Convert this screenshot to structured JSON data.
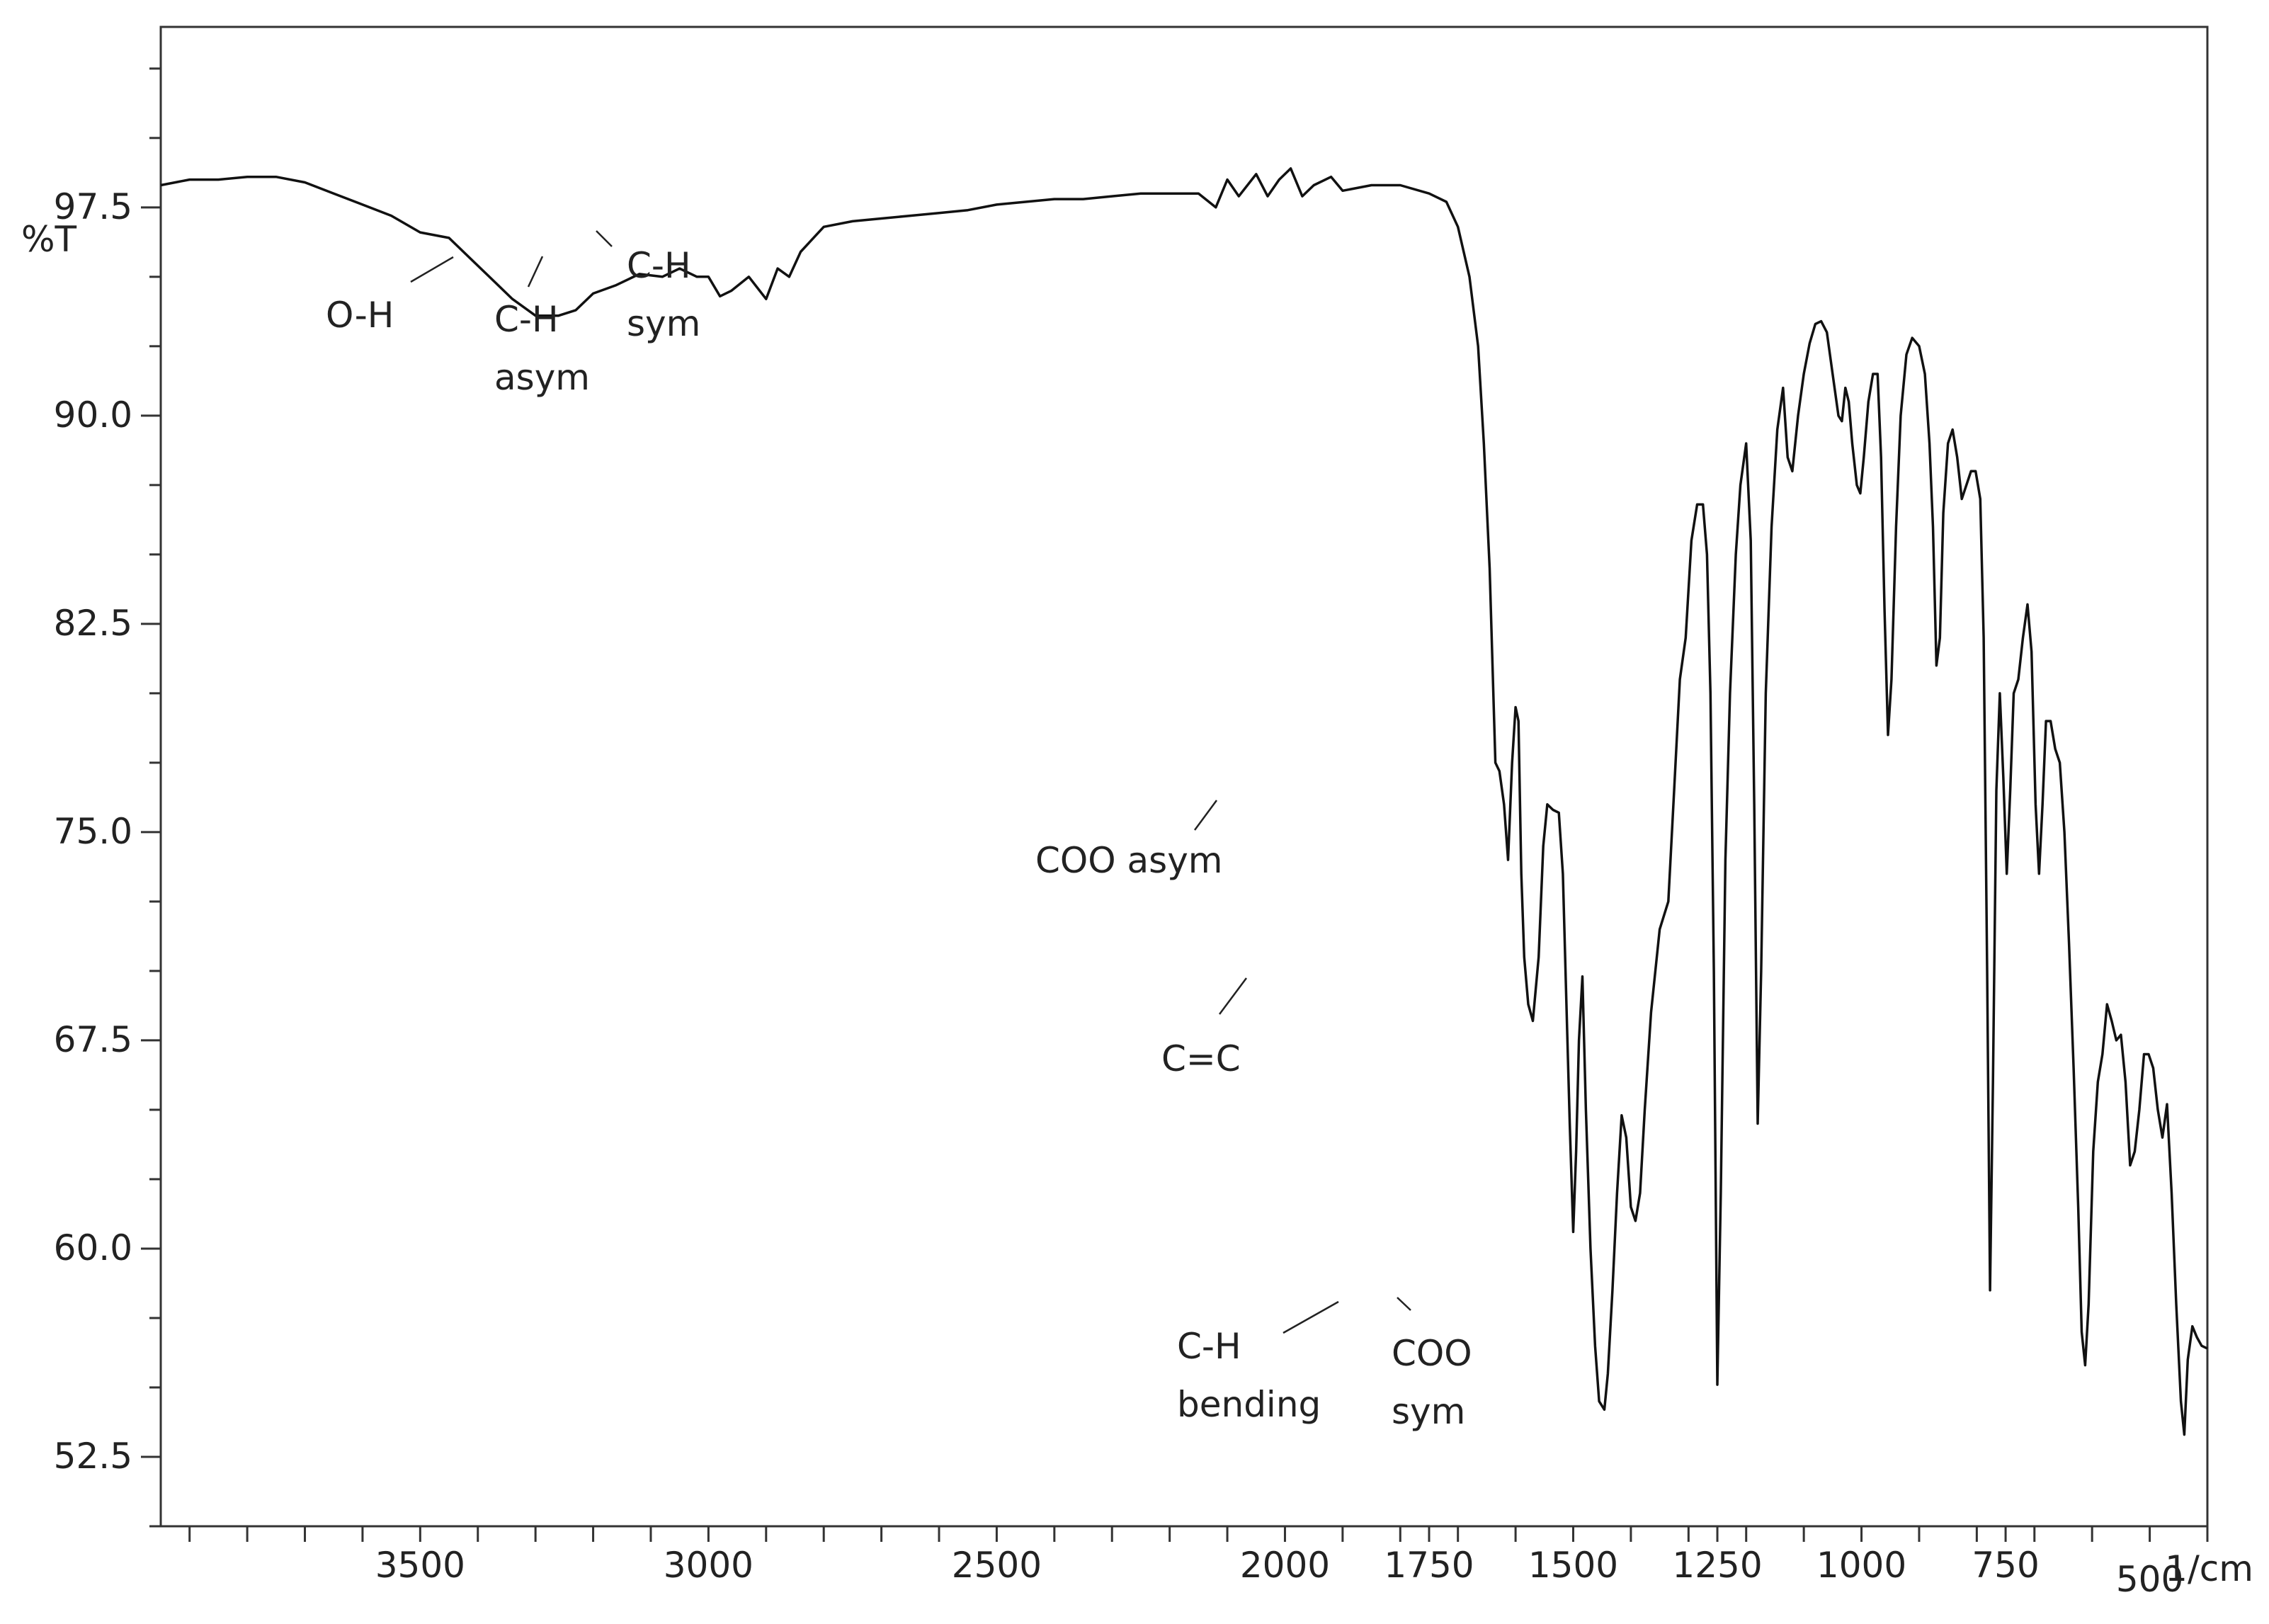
{
  "chart_data": {
    "type": "line",
    "title": "",
    "xlabel": "1/cm",
    "ylabel": "%T",
    "x_reversed": true,
    "xlim": [
      3950,
      400
    ],
    "ylim": [
      50,
      104
    ],
    "grid": false,
    "y_ticks": [
      52.5,
      60.0,
      67.5,
      75.0,
      82.5,
      90.0,
      97.5
    ],
    "y_tick_labels": [
      "52.5",
      "60.0",
      "67.5",
      "75.0",
      "82.5",
      "90.0",
      "97.5"
    ],
    "x_ticks": [
      3500,
      3000,
      2500,
      2000,
      1750,
      1500,
      1250,
      1000,
      750,
      500
    ],
    "x_tick_labels": [
      "3500",
      "3000",
      "2500",
      "2000",
      "1750",
      "1500",
      "1250",
      "1000",
      "750",
      "500"
    ],
    "series": [
      {
        "color": "#111111",
        "points": [
          [
            3950,
            98.3
          ],
          [
            3900,
            98.5
          ],
          [
            3850,
            98.5
          ],
          [
            3800,
            98.6
          ],
          [
            3750,
            98.6
          ],
          [
            3700,
            98.4
          ],
          [
            3650,
            98.0
          ],
          [
            3600,
            97.6
          ],
          [
            3550,
            97.2
          ],
          [
            3500,
            96.6
          ],
          [
            3450,
            96.4
          ],
          [
            3420,
            95.8
          ],
          [
            3380,
            95.0
          ],
          [
            3340,
            94.2
          ],
          [
            3300,
            93.6
          ],
          [
            3260,
            93.6
          ],
          [
            3230,
            93.8
          ],
          [
            3200,
            94.4
          ],
          [
            3160,
            94.7
          ],
          [
            3120,
            95.1
          ],
          [
            3080,
            95.0
          ],
          [
            3050,
            95.3
          ],
          [
            3020,
            95.0
          ],
          [
            3000,
            95.0
          ],
          [
            2980,
            94.3
          ],
          [
            2960,
            94.5
          ],
          [
            2930,
            95.0
          ],
          [
            2900,
            94.2
          ],
          [
            2880,
            95.3
          ],
          [
            2860,
            95.0
          ],
          [
            2840,
            95.9
          ],
          [
            2800,
            96.8
          ],
          [
            2750,
            97.0
          ],
          [
            2700,
            97.1
          ],
          [
            2650,
            97.2
          ],
          [
            2600,
            97.3
          ],
          [
            2550,
            97.4
          ],
          [
            2500,
            97.6
          ],
          [
            2450,
            97.7
          ],
          [
            2400,
            97.8
          ],
          [
            2350,
            97.8
          ],
          [
            2300,
            97.9
          ],
          [
            2250,
            98.0
          ],
          [
            2200,
            98.0
          ],
          [
            2150,
            98.0
          ],
          [
            2120,
            97.5
          ],
          [
            2100,
            98.5
          ],
          [
            2080,
            97.9
          ],
          [
            2050,
            98.7
          ],
          [
            2030,
            97.9
          ],
          [
            2010,
            98.5
          ],
          [
            1990,
            98.9
          ],
          [
            1970,
            97.9
          ],
          [
            1950,
            98.3
          ],
          [
            1920,
            98.6
          ],
          [
            1900,
            98.1
          ],
          [
            1850,
            98.3
          ],
          [
            1800,
            98.3
          ],
          [
            1750,
            98.0
          ],
          [
            1720,
            97.7
          ],
          [
            1700,
            96.8
          ],
          [
            1680,
            95.0
          ],
          [
            1665,
            92.5
          ],
          [
            1655,
            89.0
          ],
          [
            1645,
            84.5
          ],
          [
            1635,
            77.5
          ],
          [
            1628,
            77.2
          ],
          [
            1620,
            76.0
          ],
          [
            1613,
            74.0
          ],
          [
            1606,
            77.5
          ],
          [
            1600,
            79.5
          ],
          [
            1595,
            79.0
          ],
          [
            1590,
            73.5
          ],
          [
            1585,
            70.5
          ],
          [
            1578,
            68.8
          ],
          [
            1570,
            68.2
          ],
          [
            1560,
            70.5
          ],
          [
            1552,
            74.5
          ],
          [
            1545,
            76.0
          ],
          [
            1535,
            75.8
          ],
          [
            1525,
            75.7
          ],
          [
            1518,
            73.5
          ],
          [
            1512,
            69.0
          ],
          [
            1506,
            64.5
          ],
          [
            1500,
            60.6
          ],
          [
            1495,
            63.5
          ],
          [
            1490,
            67.5
          ],
          [
            1484,
            69.8
          ],
          [
            1478,
            65.0
          ],
          [
            1470,
            60.0
          ],
          [
            1462,
            56.5
          ],
          [
            1455,
            54.5
          ],
          [
            1446,
            54.2
          ],
          [
            1440,
            55.5
          ],
          [
            1432,
            58.5
          ],
          [
            1424,
            62.0
          ],
          [
            1416,
            64.8
          ],
          [
            1408,
            64.0
          ],
          [
            1400,
            61.5
          ],
          [
            1392,
            61.0
          ],
          [
            1384,
            62.0
          ],
          [
            1376,
            65.0
          ],
          [
            1365,
            68.5
          ],
          [
            1350,
            71.5
          ],
          [
            1335,
            72.5
          ],
          [
            1325,
            76.5
          ],
          [
            1315,
            80.5
          ],
          [
            1305,
            82.0
          ],
          [
            1295,
            85.5
          ],
          [
            1285,
            86.8
          ],
          [
            1275,
            86.8
          ],
          [
            1268,
            85.0
          ],
          [
            1262,
            80.0
          ],
          [
            1256,
            70.0
          ],
          [
            1250,
            55.1
          ],
          [
            1244,
            62.0
          ],
          [
            1236,
            74.0
          ],
          [
            1228,
            80.0
          ],
          [
            1218,
            85.0
          ],
          [
            1210,
            87.5
          ],
          [
            1200,
            89.0
          ],
          [
            1192,
            85.5
          ],
          [
            1186,
            76.0
          ],
          [
            1180,
            64.5
          ],
          [
            1174,
            70.0
          ],
          [
            1166,
            80.0
          ],
          [
            1156,
            86.0
          ],
          [
            1146,
            89.5
          ],
          [
            1136,
            91.0
          ],
          [
            1128,
            88.5
          ],
          [
            1120,
            88.0
          ],
          [
            1110,
            90.0
          ],
          [
            1100,
            91.5
          ],
          [
            1090,
            92.6
          ],
          [
            1080,
            93.3
          ],
          [
            1070,
            93.4
          ],
          [
            1060,
            93.0
          ],
          [
            1050,
            91.5
          ],
          [
            1040,
            90.0
          ],
          [
            1034,
            89.8
          ],
          [
            1028,
            91.0
          ],
          [
            1022,
            90.5
          ],
          [
            1016,
            89.0
          ],
          [
            1008,
            87.5
          ],
          [
            1002,
            87.2
          ],
          [
            996,
            88.5
          ],
          [
            988,
            90.5
          ],
          [
            980,
            91.5
          ],
          [
            972,
            91.5
          ],
          [
            966,
            88.5
          ],
          [
            960,
            83.0
          ],
          [
            954,
            78.5
          ],
          [
            948,
            80.5
          ],
          [
            940,
            86.0
          ],
          [
            932,
            90.0
          ],
          [
            922,
            92.2
          ],
          [
            912,
            92.8
          ],
          [
            900,
            92.5
          ],
          [
            890,
            91.5
          ],
          [
            882,
            89.0
          ],
          [
            876,
            86.0
          ],
          [
            870,
            81.0
          ],
          [
            864,
            82.0
          ],
          [
            858,
            86.5
          ],
          [
            850,
            89.0
          ],
          [
            842,
            89.5
          ],
          [
            834,
            88.5
          ],
          [
            826,
            87.0
          ],
          [
            818,
            87.5
          ],
          [
            810,
            88.0
          ],
          [
            802,
            88.0
          ],
          [
            794,
            87.0
          ],
          [
            788,
            82.0
          ],
          [
            782,
            70.0
          ],
          [
            777,
            58.5
          ],
          [
            772,
            66.0
          ],
          [
            766,
            76.5
          ],
          [
            760,
            80.0
          ],
          [
            754,
            77.0
          ],
          [
            748,
            73.5
          ],
          [
            742,
            76.5
          ],
          [
            736,
            80.0
          ],
          [
            728,
            80.5
          ],
          [
            720,
            82.0
          ],
          [
            712,
            83.2
          ],
          [
            705,
            81.5
          ],
          [
            698,
            76.0
          ],
          [
            692,
            73.5
          ],
          [
            686,
            76.0
          ],
          [
            680,
            79.0
          ],
          [
            672,
            79.0
          ],
          [
            664,
            78.0
          ],
          [
            656,
            77.5
          ],
          [
            648,
            75.0
          ],
          [
            640,
            71.0
          ],
          [
            632,
            66.5
          ],
          [
            624,
            61.5
          ],
          [
            618,
            57.0
          ],
          [
            612,
            55.8
          ],
          [
            606,
            58.0
          ],
          [
            598,
            63.5
          ],
          [
            590,
            66.0
          ],
          [
            582,
            67.0
          ],
          [
            574,
            68.8
          ],
          [
            566,
            68.2
          ],
          [
            558,
            67.5
          ],
          [
            550,
            67.7
          ],
          [
            542,
            66.0
          ],
          [
            534,
            63.0
          ],
          [
            526,
            63.5
          ],
          [
            518,
            65.0
          ],
          [
            510,
            67.0
          ],
          [
            502,
            67.0
          ],
          [
            494,
            66.5
          ],
          [
            486,
            65.0
          ],
          [
            478,
            64.0
          ],
          [
            470,
            65.2
          ],
          [
            462,
            62.0
          ],
          [
            454,
            58.0
          ],
          [
            446,
            54.5
          ],
          [
            440,
            53.3
          ],
          [
            434,
            56.0
          ],
          [
            426,
            57.2
          ],
          [
            418,
            56.8
          ],
          [
            410,
            56.5
          ],
          [
            400,
            56.4
          ]
        ]
      }
    ],
    "annotations": [
      {
        "lines": [
          "O-H"
        ],
        "x": 3260
      },
      {
        "lines": [
          "C-H",
          "asym"
        ],
        "x": 2990
      },
      {
        "lines": [
          "C-H",
          "sym"
        ],
        "x": 2870
      },
      {
        "lines": [
          "COO asym"
        ],
        "x": 1613
      },
      {
        "lines": [
          "C=C"
        ],
        "x": 1570
      },
      {
        "lines": [
          "C-H",
          "bending"
        ],
        "x": 1455
      },
      {
        "lines": [
          "COO",
          "sym"
        ],
        "x": 1430
      }
    ]
  }
}
